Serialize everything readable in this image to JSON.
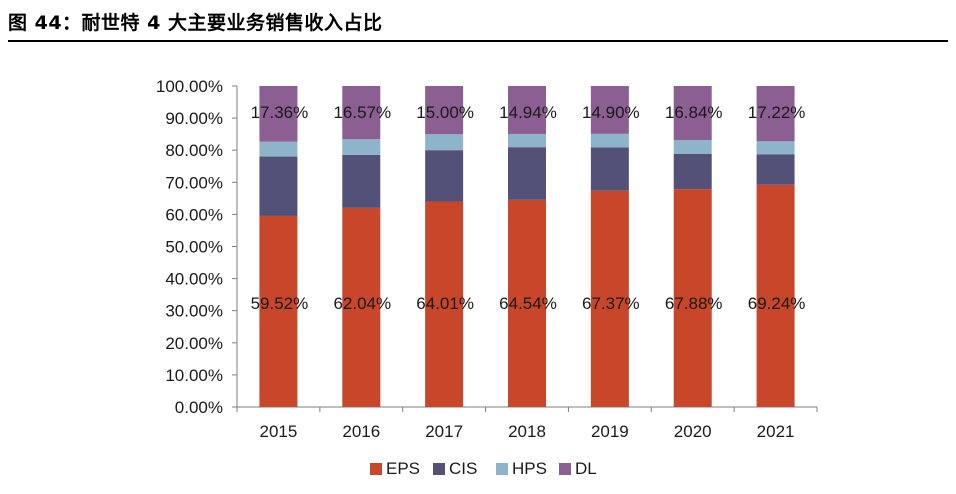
{
  "figure_title": "图 44：耐世特 4 大主要业务销售收入占比",
  "chart_data": {
    "type": "bar",
    "stacked": true,
    "categories": [
      "2015",
      "2016",
      "2017",
      "2018",
      "2019",
      "2020",
      "2021"
    ],
    "series": [
      {
        "name": "EPS",
        "color": "#C8462A",
        "values": [
          59.52,
          62.04,
          64.01,
          64.54,
          67.37,
          67.88,
          69.24
        ],
        "labels": [
          "59.52%",
          "62.04%",
          "64.01%",
          "64.54%",
          "67.37%",
          "67.88%",
          "69.24%"
        ]
      },
      {
        "name": "CIS",
        "color": "#545178",
        "values": [
          18.5,
          16.5,
          16.0,
          16.4,
          13.5,
          11.0,
          9.5
        ]
      },
      {
        "name": "HPS",
        "color": "#8DB4C8",
        "values": [
          4.62,
          4.89,
          4.99,
          4.12,
          4.23,
          4.28,
          4.04
        ]
      },
      {
        "name": "DL",
        "color": "#8C5F92",
        "values": [
          17.36,
          16.57,
          15.0,
          14.94,
          14.9,
          16.84,
          17.22
        ],
        "labels": [
          "17.36%",
          "16.57%",
          "15.00%",
          "14.94%",
          "14.90%",
          "16.84%",
          "17.22%"
        ]
      }
    ],
    "y_ticks": [
      "0.00%",
      "10.00%",
      "20.00%",
      "30.00%",
      "40.00%",
      "50.00%",
      "60.00%",
      "70.00%",
      "80.00%",
      "90.00%",
      "100.00%"
    ],
    "ylim": [
      0,
      100
    ],
    "grid": false,
    "legend_position": "bottom"
  }
}
